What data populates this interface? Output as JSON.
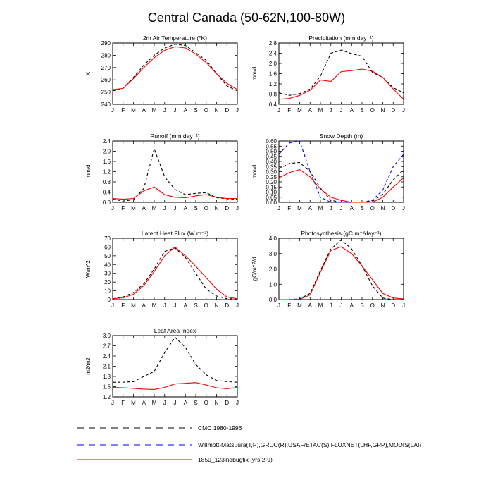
{
  "title": "Central Canada (50-62N,100-80W)",
  "months": [
    "J",
    "F",
    "M",
    "A",
    "M",
    "J",
    "J",
    "A",
    "S",
    "O",
    "N",
    "D",
    "J"
  ],
  "colors": {
    "cmc": "#000000",
    "obs": "#0000ff",
    "model": "#ff0000"
  },
  "legend": [
    {
      "key": "cmc",
      "label": "CMC 1980-1996",
      "style": "dashed",
      "color": "#000000"
    },
    {
      "key": "obs",
      "label": "Willmott-Matsuura(T,P),GRDC(R),USAF/ETAC(S),FLUXNET(LHF,GPP),MODIS(LAI)",
      "style": "dashed",
      "color": "#0000ff"
    },
    {
      "key": "model",
      "label": "1850_123lndbugfix (yrs 2-9)",
      "style": "solid",
      "color": "#ff0000"
    }
  ],
  "chart_data": [
    {
      "type": "line",
      "title": "2m Air Temperature (°K)",
      "ylabel": "K",
      "ylim": [
        240,
        290
      ],
      "yticks": [
        240,
        250,
        260,
        270,
        280,
        290
      ],
      "x": [
        "J",
        "F",
        "M",
        "A",
        "M",
        "J",
        "J",
        "A",
        "S",
        "O",
        "N",
        "D",
        "J"
      ],
      "series": [
        {
          "key": "cmc",
          "values": [
            251,
            253,
            262,
            272,
            280,
            286,
            289,
            288,
            282,
            276,
            265,
            255,
            251
          ]
        },
        {
          "key": "model",
          "values": [
            252,
            253,
            261,
            270,
            278,
            284,
            287,
            286,
            281,
            274,
            265,
            257,
            252
          ]
        }
      ]
    },
    {
      "type": "line",
      "title": "Precipitation (mm day⁻¹)",
      "ylabel": "mm/d",
      "ylim": [
        0.4,
        2.8
      ],
      "yticks": [
        0.4,
        0.8,
        1.2,
        1.6,
        2.0,
        2.4,
        2.8
      ],
      "x": [
        "J",
        "F",
        "M",
        "A",
        "M",
        "J",
        "J",
        "A",
        "S",
        "O",
        "N",
        "D",
        "J"
      ],
      "series": [
        {
          "key": "cmc",
          "values": [
            0.85,
            0.75,
            0.82,
            1.0,
            1.5,
            2.4,
            2.52,
            2.38,
            2.28,
            1.65,
            1.45,
            1.05,
            0.85
          ]
        },
        {
          "key": "model",
          "values": [
            0.6,
            0.63,
            0.75,
            0.95,
            1.35,
            1.3,
            1.68,
            1.72,
            1.78,
            1.7,
            1.45,
            1.0,
            0.6
          ]
        }
      ]
    },
    {
      "type": "line",
      "title": "Runoff (mm day⁻¹)",
      "ylabel": "mm/d",
      "ylim": [
        0.0,
        2.4
      ],
      "yticks": [
        0.0,
        0.4,
        0.8,
        1.2,
        1.6,
        2.0,
        2.4
      ],
      "x": [
        "J",
        "F",
        "M",
        "A",
        "M",
        "J",
        "J",
        "A",
        "S",
        "O",
        "N",
        "D",
        "J"
      ],
      "series": [
        {
          "key": "cmc",
          "values": [
            0.12,
            0.05,
            0.1,
            0.55,
            2.1,
            1.0,
            0.5,
            0.3,
            0.35,
            0.38,
            0.18,
            0.14,
            0.12
          ]
        },
        {
          "key": "model",
          "values": [
            0.15,
            0.12,
            0.15,
            0.45,
            0.6,
            0.3,
            0.2,
            0.18,
            0.25,
            0.3,
            0.2,
            0.15,
            0.15
          ]
        }
      ]
    },
    {
      "type": "line",
      "title": "Snow Depth (m)",
      "ylabel": "mm/d",
      "ylim": [
        0.0,
        0.6
      ],
      "yticks": [
        0.0,
        0.05,
        0.1,
        0.15,
        0.2,
        0.25,
        0.3,
        0.35,
        0.4,
        0.45,
        0.5,
        0.55,
        0.6
      ],
      "ytick_labels": [
        "0.00",
        "0.05",
        "0.10",
        "0.15",
        "0.20",
        "0.25",
        "0.30",
        "0.35",
        "0.40",
        "0.45",
        "0.50",
        "0.55",
        "0.60"
      ],
      "x": [
        "J",
        "F",
        "M",
        "A",
        "M",
        "J",
        "J",
        "A",
        "S",
        "O",
        "N",
        "D",
        "J"
      ],
      "series": [
        {
          "key": "cmc",
          "values": [
            0.33,
            0.38,
            0.39,
            0.3,
            0.14,
            0.02,
            0.0,
            0.0,
            0.0,
            0.01,
            0.08,
            0.22,
            0.32
          ]
        },
        {
          "key": "obs",
          "values": [
            0.47,
            0.58,
            0.6,
            0.3,
            0.05,
            0.0,
            0.0,
            0.0,
            0.0,
            0.02,
            0.12,
            0.35,
            0.47
          ]
        },
        {
          "key": "model",
          "values": [
            0.24,
            0.29,
            0.32,
            0.25,
            0.13,
            0.05,
            0.02,
            0.0,
            0.0,
            0.0,
            0.05,
            0.15,
            0.24
          ]
        }
      ]
    },
    {
      "type": "line",
      "title": "Latent Heat Flux (W m⁻²)",
      "ylabel": "W/m^2",
      "ylim": [
        0,
        70
      ],
      "yticks": [
        0,
        10,
        20,
        30,
        40,
        50,
        60,
        70
      ],
      "x": [
        "J",
        "F",
        "M",
        "A",
        "M",
        "J",
        "J",
        "A",
        "S",
        "O",
        "N",
        "D",
        "J"
      ],
      "series": [
        {
          "key": "cmc",
          "values": [
            1,
            3,
            8,
            18,
            35,
            55,
            59,
            48,
            30,
            12,
            4,
            1,
            1
          ]
        },
        {
          "key": "model",
          "values": [
            1,
            2,
            6,
            16,
            32,
            50,
            60,
            50,
            38,
            25,
            12,
            3,
            1
          ]
        }
      ]
    },
    {
      "type": "line",
      "title": "Photosynthesis (gC m⁻²day⁻¹)",
      "ylabel": "gC/m^2/d",
      "ylim": [
        0.0,
        4.0
      ],
      "yticks": [
        0.0,
        1.0,
        2.0,
        3.0,
        4.0
      ],
      "x": [
        "J",
        "F",
        "M",
        "A",
        "M",
        "J",
        "J",
        "A",
        "S",
        "O",
        "N",
        "D",
        "J"
      ],
      "series": [
        {
          "key": "cmc",
          "values": [
            0.0,
            0.0,
            0.05,
            0.4,
            1.9,
            3.3,
            3.9,
            3.3,
            2.2,
            0.9,
            0.1,
            0.0,
            0.0
          ]
        },
        {
          "key": "model",
          "values": [
            0.0,
            0.0,
            0.02,
            0.3,
            1.8,
            3.2,
            3.45,
            3.0,
            2.2,
            1.3,
            0.4,
            0.1,
            0.05
          ]
        }
      ]
    },
    {
      "type": "line",
      "title": "Leaf Area Index",
      "ylabel": "m2/m2",
      "ylim": [
        1.2,
        3.0
      ],
      "yticks": [
        1.2,
        1.5,
        1.8,
        2.1,
        2.4,
        2.7,
        3.0
      ],
      "x": [
        "J",
        "F",
        "M",
        "A",
        "M",
        "J",
        "J",
        "A",
        "S",
        "O",
        "N",
        "D",
        "J"
      ],
      "series": [
        {
          "key": "cmc",
          "values": [
            1.63,
            1.63,
            1.65,
            1.8,
            1.95,
            2.5,
            2.95,
            2.65,
            2.15,
            1.85,
            1.68,
            1.65,
            1.63
          ]
        },
        {
          "key": "model",
          "values": [
            1.48,
            1.47,
            1.45,
            1.43,
            1.42,
            1.48,
            1.58,
            1.6,
            1.62,
            1.55,
            1.47,
            1.44,
            1.48
          ]
        }
      ]
    }
  ]
}
